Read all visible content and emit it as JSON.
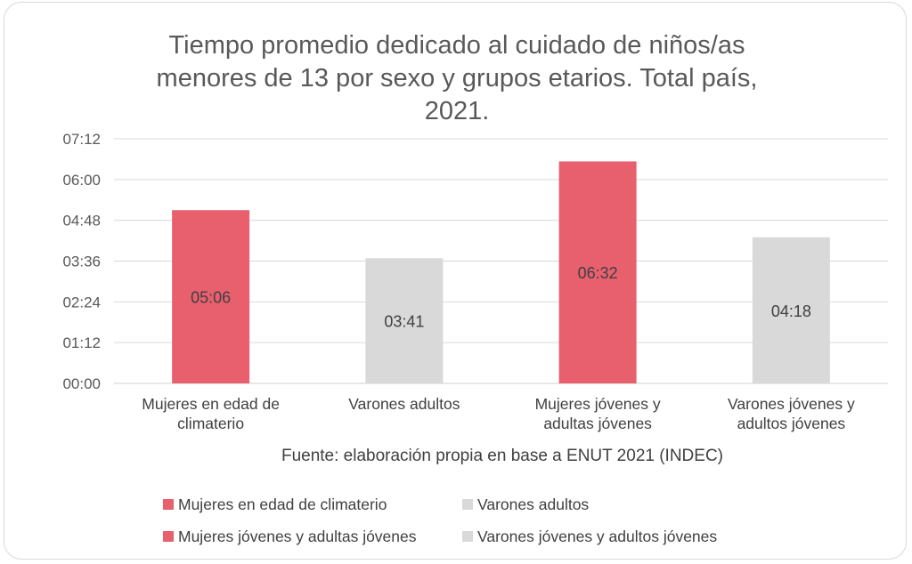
{
  "chart_data": {
    "type": "bar",
    "title_lines": [
      "Tiempo promedio dedicado al cuidado de niños/as",
      "menores de 13 por sexo y grupos etarios. Total país,",
      "2021."
    ],
    "categories": [
      [
        "Mujeres en edad de",
        "climaterio"
      ],
      [
        "Varones adultos"
      ],
      [
        "Mujeres jóvenes y",
        "adultas jóvenes"
      ],
      [
        "Varones jóvenes y",
        "adultos jóvenes"
      ]
    ],
    "values_minutes": [
      306,
      221,
      392,
      258
    ],
    "data_labels": [
      "05:06",
      "03:41",
      "06:32",
      "04:18"
    ],
    "y_ticks": [
      "00:00",
      "01:12",
      "02:24",
      "03:36",
      "04:48",
      "06:00",
      "07:12"
    ],
    "ylim_minutes": [
      0,
      432
    ],
    "grid": true,
    "source": "Fuente: elaboración propia en base a ENUT 2021 (INDEC)",
    "legend_position": "bottom",
    "legend": [
      "Mujeres en edad de climaterio",
      "Varones adultos",
      "Mujeres jóvenes y adultas jóvenes",
      "Varones jóvenes y adultos jóvenes"
    ],
    "colors": [
      "#e8606e",
      "#d9d9d9",
      "#e8606e",
      "#d9d9d9"
    ]
  }
}
